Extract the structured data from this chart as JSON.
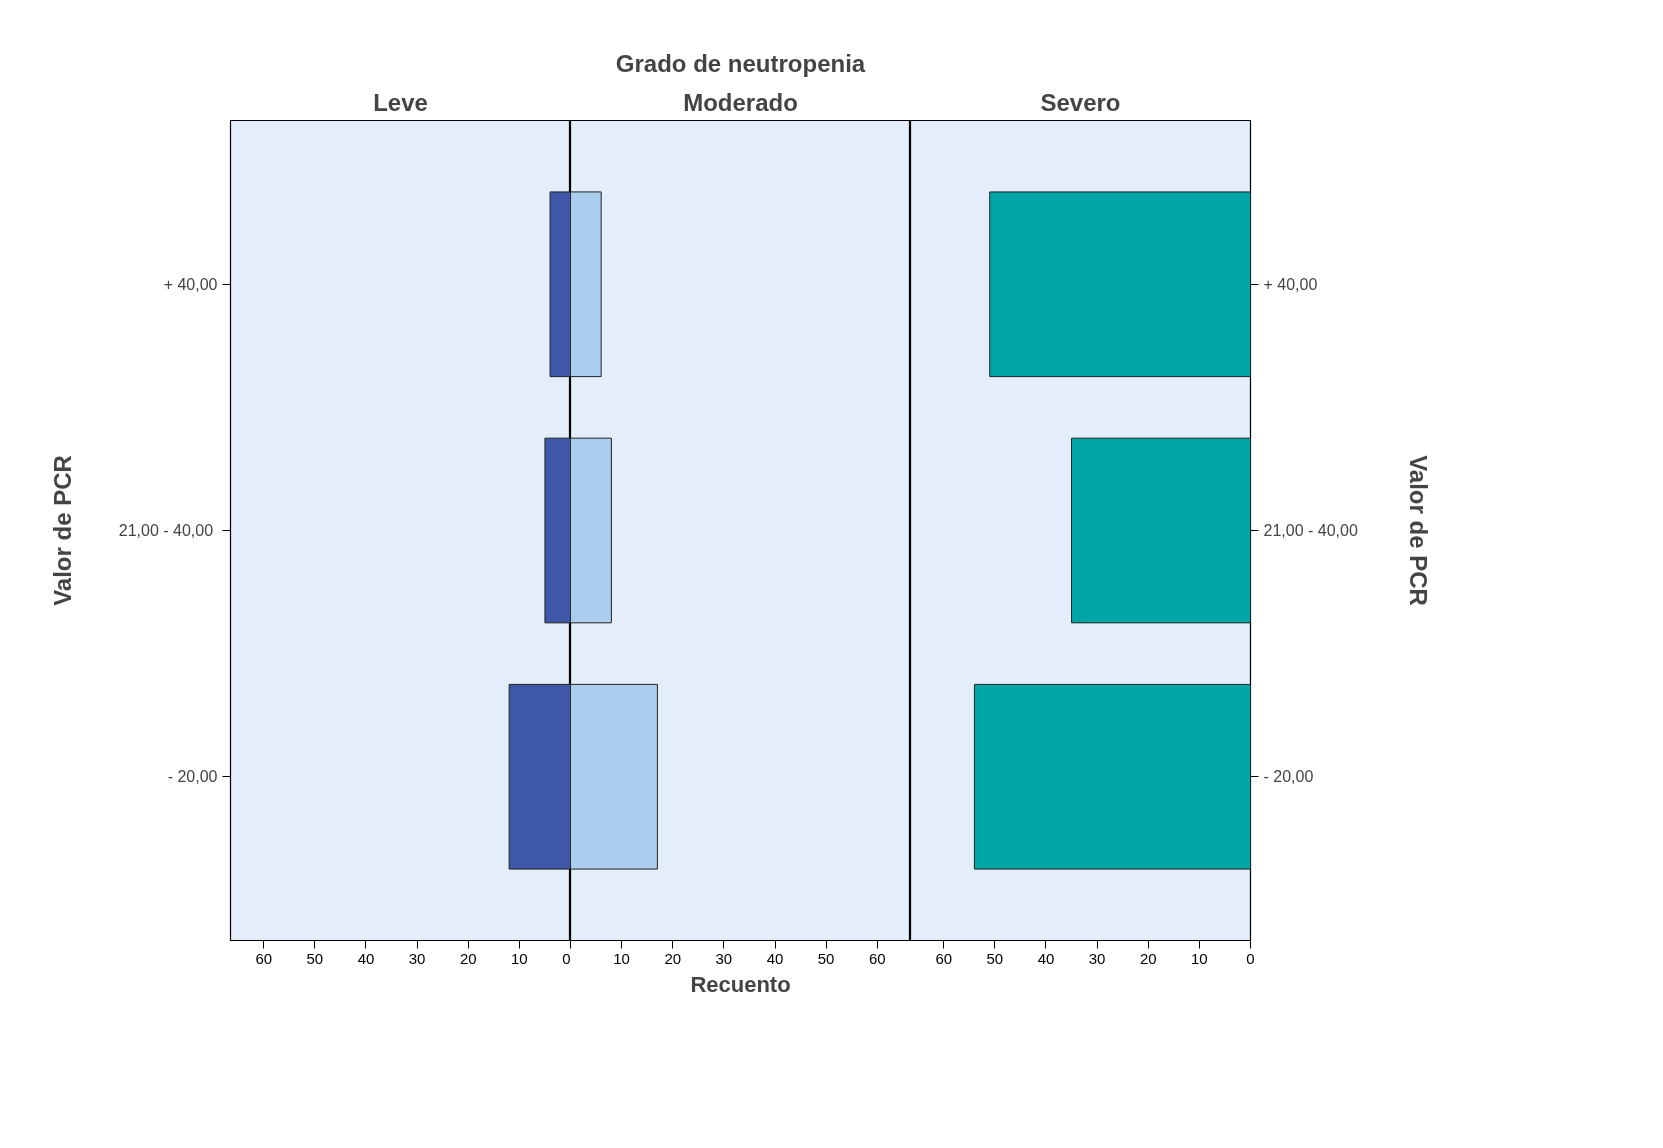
{
  "chart_data": [
    {
      "type": "bar",
      "orientation": "horizontal",
      "subtitle": "Leve",
      "ylabel": "Valor de PCR",
      "categories": [
        "+ 40,00",
        "21,00 -  40,00",
        "- 20,00"
      ],
      "values": [
        4,
        5,
        12
      ],
      "color": "#3f57a8",
      "xlim": [
        66.5,
        0
      ],
      "xticks": [
        60,
        50,
        40,
        30,
        20,
        10,
        0
      ]
    },
    {
      "type": "bar",
      "orientation": "horizontal",
      "title": "Grado de neutropenia",
      "subtitle": "Moderado",
      "xlabel": "Recuento",
      "categories": [
        null,
        null,
        null
      ],
      "values": [
        6,
        8,
        17
      ],
      "color": "#abcdee",
      "xlim": [
        0,
        66.5
      ],
      "xticks": [
        {
          "value": 0,
          "label": null
        },
        10,
        20,
        30,
        40,
        50,
        60
      ],
      "tick_labels": "x"
    },
    {
      "type": "bar",
      "orientation": "horizontal",
      "subtitle": "Severo",
      "y2label": "Valor de PCR",
      "categories": [
        "+ 40,00",
        "21,00 -  40,00",
        "- 20,00"
      ],
      "values": [
        51,
        35,
        54
      ],
      "color": "#00a6a6",
      "xlim": [
        66.5,
        0
      ],
      "xticks": [
        60,
        50,
        40,
        30,
        20,
        10,
        0
      ]
    }
  ]
}
